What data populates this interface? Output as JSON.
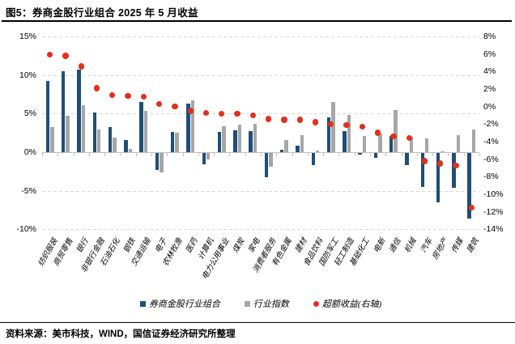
{
  "title": "图5：券商金股行业组合 2025 年 5 月收益",
  "source": "资料来源：美市科技，WIND，国信证券经济研究所整理",
  "legend": {
    "portfolio": "券商金股行业组合",
    "index": "行业指数",
    "excess": "超额收益(右轴)"
  },
  "colors": {
    "portfolio": "#1F4E79",
    "index": "#A6A6A6",
    "excess": "#E0301E",
    "gridline": "#D9D9D9",
    "axis": "#BFBFBF"
  },
  "chart_data": {
    "type": "bar",
    "title": "图5：券商金股行业组合 2025 年 5 月收益",
    "categories": [
      "纺织服装",
      "商贸零售",
      "银行",
      "非银行金融",
      "石油石化",
      "钢铁",
      "交通运输",
      "电子",
      "农林牧渔",
      "医药",
      "计算机",
      "电力公用事业",
      "煤炭",
      "家电",
      "消费者服务",
      "有色金属",
      "建材",
      "食品饮料",
      "国防军工",
      "轻工制造",
      "基础化工",
      "电新",
      "通信",
      "机械",
      "汽车",
      "房地产",
      "传媒",
      "建筑"
    ],
    "series": [
      {
        "name": "券商金股行业组合",
        "type": "bar",
        "axis": "left",
        "values": [
          9.2,
          10.5,
          10.7,
          5.1,
          3.2,
          1.6,
          6.5,
          -2.2,
          2.6,
          6.3,
          -1.5,
          2.6,
          2.8,
          2.7,
          -3.1,
          0.3,
          0.8,
          -1.6,
          4.5,
          2.7,
          -0.2,
          -0.6,
          2.1,
          -1.6,
          -4.4,
          -6.4,
          -4.5,
          -8.5
        ]
      },
      {
        "name": "行业指数",
        "type": "bar",
        "axis": "left",
        "values": [
          3.2,
          4.7,
          6.1,
          2.9,
          1.9,
          0.4,
          5.4,
          -2.5,
          2.5,
          6.7,
          -0.8,
          3.4,
          3.6,
          3.7,
          -1.8,
          1.6,
          2.2,
          0.2,
          6.5,
          4.8,
          2.1,
          2.4,
          5.5,
          2.0,
          1.8,
          0.1,
          2.2,
          2.9
        ]
      },
      {
        "name": "超额收益(右轴)",
        "type": "scatter",
        "axis": "right",
        "values": [
          5.9,
          5.8,
          4.6,
          2.1,
          1.3,
          1.2,
          1.1,
          0.3,
          0.0,
          -0.5,
          -0.7,
          -0.8,
          -0.8,
          -1.0,
          -1.4,
          -1.5,
          -1.5,
          -1.8,
          -2.0,
          -2.1,
          -2.3,
          -3.0,
          -3.4,
          -3.6,
          -6.2,
          -6.5,
          -6.7,
          -11.5
        ]
      }
    ],
    "left_axis": {
      "ticks": [
        "15%",
        "10%",
        "5%",
        "0%",
        "-5%",
        "-10%"
      ],
      "values": [
        15,
        10,
        5,
        0,
        -5,
        -10
      ],
      "min": -10,
      "max": 15
    },
    "right_axis": {
      "ticks": [
        "8%",
        "6%",
        "4%",
        "2%",
        "0%",
        "-2%",
        "-4%",
        "-6%",
        "-8%",
        "-10%",
        "-12%",
        "-14%"
      ],
      "values": [
        8,
        6,
        4,
        2,
        0,
        -2,
        -4,
        -6,
        -8,
        -10,
        -12,
        -14
      ],
      "min": -14,
      "max": 8
    },
    "grid": "horizontal dashed at left-axis ticks",
    "legend_position": "bottom"
  }
}
